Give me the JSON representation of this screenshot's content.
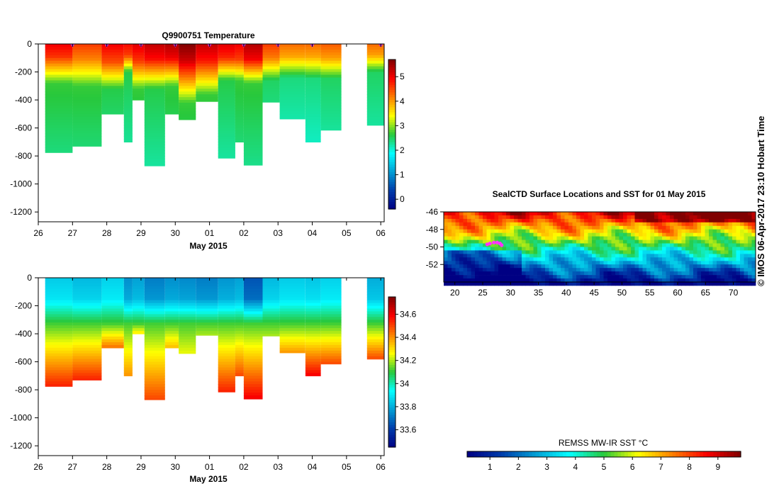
{
  "chart_data": [
    {
      "id": "temperature-section",
      "type": "heatmap",
      "title": "Q9900751  Temperature",
      "xlabel": "May 2015",
      "x_tick_labels": [
        "26",
        "27",
        "28",
        "29",
        "30",
        "01",
        "02",
        "03",
        "04",
        "05",
        "06"
      ],
      "x_tick_values": [
        26,
        27,
        28,
        29,
        30,
        31,
        32,
        33,
        34,
        35,
        36
      ],
      "xlim": [
        26,
        36.1
      ],
      "ylabel": "",
      "y_tick_values": [
        0,
        -200,
        -400,
        -600,
        -800,
        -1000,
        -1200
      ],
      "y_tick_labels": [
        "0",
        "-200",
        "-400",
        "-600",
        "-800",
        "-1000",
        "-1200"
      ],
      "ylim": [
        -1270,
        0
      ],
      "variable": "temperature",
      "colorbar": {
        "range": [
          -0.4,
          5.7
        ],
        "tick_values": [
          0,
          1,
          2,
          3,
          4,
          5
        ],
        "tick_labels": [
          "0",
          "1",
          "2",
          "3",
          "4",
          "5"
        ]
      },
      "profile_marker_times": [
        27.0,
        28.0,
        29.0,
        30.0,
        31.0,
        32.0,
        33.0,
        34.0,
        36.0
      ]
    },
    {
      "id": "salinity-section",
      "type": "heatmap",
      "title": "",
      "xlabel": "May 2015",
      "x_tick_labels": [
        "26",
        "27",
        "28",
        "29",
        "30",
        "01",
        "02",
        "03",
        "04",
        "05",
        "06"
      ],
      "x_tick_values": [
        26,
        27,
        28,
        29,
        30,
        31,
        32,
        33,
        34,
        35,
        36
      ],
      "xlim": [
        26,
        36.1
      ],
      "y_tick_values": [
        0,
        -200,
        -400,
        -600,
        -800,
        -1000,
        -1200
      ],
      "y_tick_labels": [
        "0",
        "-200",
        "-400",
        "-600",
        "-800",
        "-1000",
        "-1200"
      ],
      "ylim": [
        -1270,
        0
      ],
      "variable": "salinity",
      "colorbar": {
        "range": [
          33.45,
          34.75
        ],
        "tick_values": [
          33.6,
          33.8,
          34,
          34.2,
          34.4,
          34.6
        ],
        "tick_labels": [
          "33.6",
          "33.8",
          "34",
          "34.2",
          "34.4",
          "34.6"
        ]
      }
    },
    {
      "id": "sst-map",
      "type": "heatmap",
      "title": "SealCTD Surface Locations and SST for 01 May 2015",
      "xlabel": "",
      "x_tick_values": [
        20,
        25,
        30,
        35,
        40,
        45,
        50,
        55,
        60,
        65,
        70
      ],
      "x_tick_labels": [
        "20",
        "25",
        "30",
        "35",
        "40",
        "45",
        "50",
        "55",
        "60",
        "65",
        "70"
      ],
      "xlim": [
        18,
        74
      ],
      "y_tick_values": [
        -46,
        -48,
        -50,
        -52
      ],
      "y_tick_labels": [
        "-46",
        "-48",
        "-50",
        "-52"
      ],
      "ylim": [
        -54,
        -46
      ],
      "seal_positions": [
        [
          25.8,
          -49.7
        ],
        [
          26.3,
          -49.6
        ],
        [
          27.0,
          -49.5
        ],
        [
          27.6,
          -49.5
        ],
        [
          28.1,
          -49.6
        ],
        [
          28.4,
          -49.8
        ]
      ]
    },
    {
      "id": "sst-colorbar",
      "type": "heatmap",
      "title": "REMSS MW-IR SST °C",
      "range": [
        0.2,
        9.8
      ],
      "tick_values": [
        1,
        2,
        3,
        4,
        5,
        6,
        7,
        8,
        9
      ],
      "tick_labels": [
        "1",
        "2",
        "3",
        "4",
        "5",
        "6",
        "7",
        "8",
        "9"
      ]
    }
  ],
  "profiles": [
    {
      "t0": 26.2,
      "t1": 27.0,
      "maxdepth": 775,
      "sst": 5.0,
      "ml": 90,
      "tc": 280,
      "deep": 2.5,
      "sal0": 33.85,
      "salDeep": 34.55
    },
    {
      "t0": 27.0,
      "t1": 27.85,
      "maxdepth": 730,
      "sst": 4.6,
      "ml": 110,
      "tc": 300,
      "deep": 2.5,
      "sal0": 33.82,
      "salDeep": 34.55
    },
    {
      "t0": 27.85,
      "t1": 28.5,
      "maxdepth": 500,
      "sst": 5.0,
      "ml": 130,
      "tc": 320,
      "deep": 2.4,
      "sal0": 33.86,
      "salDeep": 34.45
    },
    {
      "t0": 28.5,
      "t1": 28.75,
      "maxdepth": 700,
      "sst": 4.9,
      "ml": 80,
      "tc": 200,
      "deep": 2.4,
      "sal0": 33.75,
      "salDeep": 34.4
    },
    {
      "t0": 28.75,
      "t1": 29.1,
      "maxdepth": 400,
      "sst": 5.1,
      "ml": 120,
      "tc": 320,
      "deep": 2.5,
      "sal0": 33.78,
      "salDeep": 34.3
    },
    {
      "t0": 29.1,
      "t1": 29.7,
      "maxdepth": 870,
      "sst": 5.3,
      "ml": 110,
      "tc": 320,
      "deep": 2.4,
      "sal0": 33.72,
      "salDeep": 34.5
    },
    {
      "t0": 29.7,
      "t1": 30.1,
      "maxdepth": 500,
      "sst": 5.4,
      "ml": 100,
      "tc": 300,
      "deep": 2.5,
      "sal0": 33.75,
      "salDeep": 34.35
    },
    {
      "t0": 30.1,
      "t1": 30.6,
      "maxdepth": 540,
      "sst": 5.7,
      "ml": 120,
      "tc": 420,
      "deep": 2.5,
      "sal0": 33.74,
      "salDeep": 34.25
    },
    {
      "t0": 30.6,
      "t1": 31.25,
      "maxdepth": 410,
      "sst": 5.3,
      "ml": 120,
      "tc": 360,
      "deep": 2.5,
      "sal0": 33.72,
      "salDeep": 34.2
    },
    {
      "t0": 31.25,
      "t1": 31.75,
      "maxdepth": 815,
      "sst": 5.1,
      "ml": 100,
      "tc": 260,
      "deep": 2.4,
      "sal0": 33.76,
      "salDeep": 34.55
    },
    {
      "t0": 31.75,
      "t1": 32.0,
      "maxdepth": 700,
      "sst": 5.0,
      "ml": 110,
      "tc": 260,
      "deep": 2.5,
      "sal0": 33.78,
      "salDeep": 34.5
    },
    {
      "t0": 32.0,
      "t1": 32.55,
      "maxdepth": 865,
      "sst": 5.4,
      "ml": 110,
      "tc": 280,
      "deep": 2.5,
      "sal0": 33.65,
      "salDeep": 34.6
    },
    {
      "t0": 32.55,
      "t1": 33.05,
      "maxdepth": 415,
      "sst": 4.6,
      "ml": 100,
      "tc": 260,
      "deep": 2.3,
      "sal0": 33.82,
      "salDeep": 34.2
    },
    {
      "t0": 33.05,
      "t1": 33.8,
      "maxdepth": 535,
      "sst": 4.3,
      "ml": 90,
      "tc": 240,
      "deep": 2.2,
      "sal0": 33.85,
      "salDeep": 34.4
    },
    {
      "t0": 33.8,
      "t1": 34.25,
      "maxdepth": 700,
      "sst": 4.3,
      "ml": 90,
      "tc": 250,
      "deep": 2.2,
      "sal0": 33.84,
      "salDeep": 34.6
    },
    {
      "t0": 34.25,
      "t1": 34.85,
      "maxdepth": 615,
      "sst": 4.4,
      "ml": 100,
      "tc": 250,
      "deep": 2.3,
      "sal0": 33.86,
      "salDeep": 34.5
    },
    {
      "t0": 35.6,
      "t1": 36.1,
      "maxdepth": 580,
      "sst": 4.3,
      "ml": 80,
      "tc": 200,
      "deep": 2.3,
      "sal0": 33.8,
      "salDeep": 34.5
    }
  ],
  "credit": "© IMOS 06-Apr-2017 23:10 Hobart Time",
  "colors": {
    "marker": "#cc33cc",
    "seal_track": "#ff33ff"
  }
}
